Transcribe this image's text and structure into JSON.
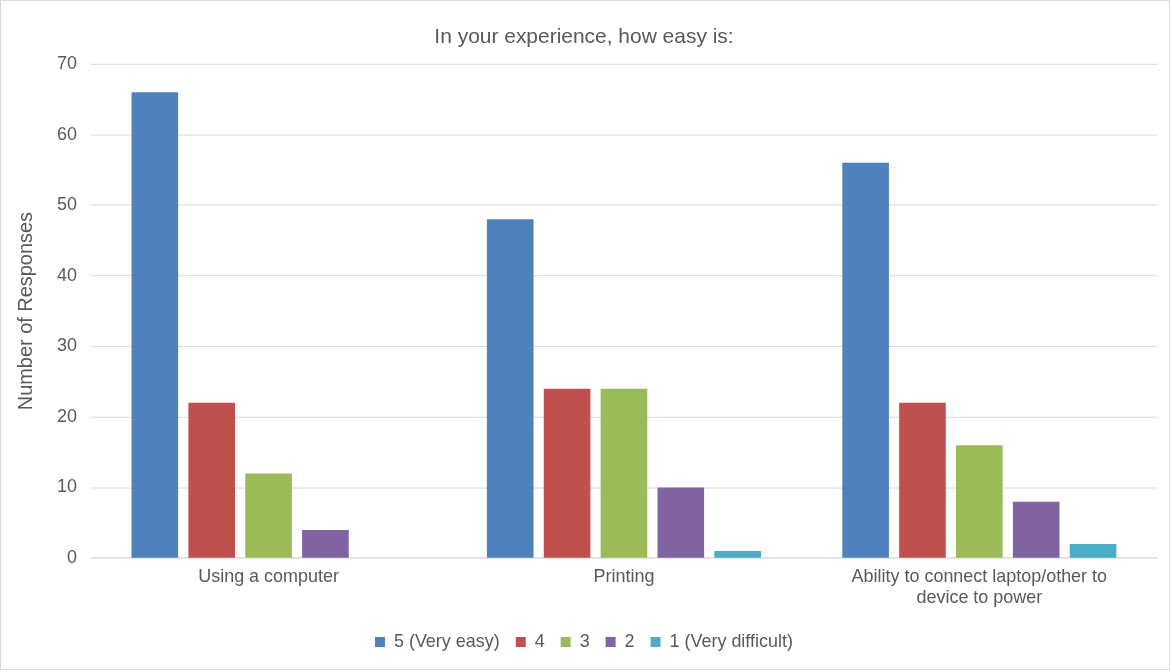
{
  "chart_data": {
    "type": "bar",
    "title": "In your experience, how easy is:",
    "ylabel": "Number of Responses",
    "categories": [
      "Using a computer",
      "Printing",
      "Ability to connect laptop/other to device to power"
    ],
    "series": [
      {
        "name": "5 (Very easy)",
        "color": "#4f81bd",
        "values": [
          66,
          48,
          56
        ]
      },
      {
        "name": "4",
        "color": "#c0504d",
        "values": [
          22,
          24,
          22
        ]
      },
      {
        "name": "3",
        "color": "#9bbb59",
        "values": [
          12,
          24,
          16
        ]
      },
      {
        "name": "2",
        "color": "#8064a2",
        "values": [
          4,
          10,
          8
        ]
      },
      {
        "name": "1 (Very difficult)",
        "color": "#4bacc6",
        "values": [
          0,
          1,
          2
        ]
      }
    ],
    "ylim": [
      0,
      70
    ],
    "yticks": [
      0,
      10,
      20,
      30,
      40,
      50,
      60,
      70
    ],
    "grid": "y",
    "legend": "bottom"
  }
}
